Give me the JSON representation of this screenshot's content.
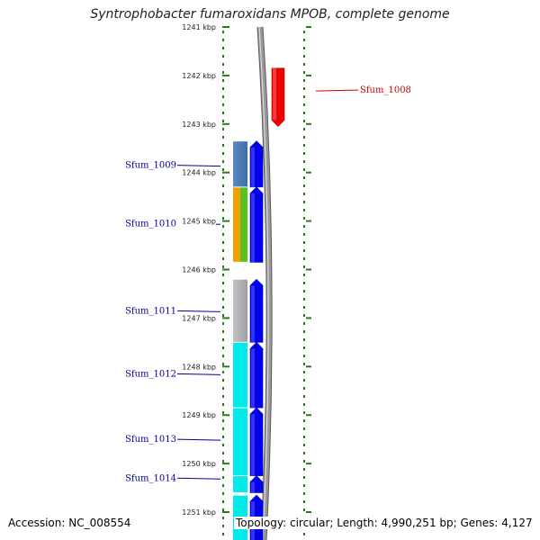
{
  "title": "Syntrophobacter fumaroxidans MPOB, complete genome",
  "footer": {
    "accession": "Accession: NC_008554",
    "topology": "Topology: circular; Length: 4,990,251 bp; Genes: 4,127"
  },
  "colors": {
    "tick": "#2a7a1a",
    "backbone": "#9a9a9a",
    "forward_gene": "#0000ee",
    "reverse_gene": "#ee0000",
    "label_forward": "#000099",
    "label_reverse": "#cc0000"
  },
  "chart_data": {
    "type": "genome-map",
    "axis": {
      "unit": "kbp",
      "range_kbp": [
        1240.9,
        1251.6
      ],
      "ticks": [
        {
          "kbp": 1241,
          "label": "1241 kbp"
        },
        {
          "kbp": 1242,
          "label": "1242 kbp"
        },
        {
          "kbp": 1243,
          "label": "1243 kbp"
        },
        {
          "kbp": 1244,
          "label": "1244 kbp"
        },
        {
          "kbp": 1245,
          "label": "1245 kbp"
        },
        {
          "kbp": 1246,
          "label": "1246 kbp"
        },
        {
          "kbp": 1247,
          "label": "1247 kbp"
        },
        {
          "kbp": 1248,
          "label": "1248 kbp"
        },
        {
          "kbp": 1249,
          "label": "1249 kbp"
        },
        {
          "kbp": 1250,
          "label": "1250 kbp"
        },
        {
          "kbp": 1251,
          "label": "1251 kbp"
        }
      ]
    },
    "genes": [
      {
        "name": "Sfum_1008",
        "strand": "reverse",
        "start_kbp": 1241.85,
        "end_kbp": 1243.05,
        "label_kbp": 1242.3
      },
      {
        "name": "Sfum_1009",
        "strand": "forward",
        "start_kbp": 1243.35,
        "end_kbp": 1244.3,
        "label_kbp": 1243.85
      },
      {
        "name": "Sfum_1010",
        "strand": "forward",
        "start_kbp": 1244.3,
        "end_kbp": 1245.85,
        "label_kbp": 1245.05
      },
      {
        "name": "Sfum_1011",
        "strand": "forward",
        "start_kbp": 1246.2,
        "end_kbp": 1247.5,
        "label_kbp": 1246.85
      },
      {
        "name": "Sfum_1012",
        "strand": "forward",
        "start_kbp": 1247.5,
        "end_kbp": 1248.85,
        "label_kbp": 1248.15
      },
      {
        "name": "Sfum_1013",
        "strand": "forward",
        "start_kbp": 1248.85,
        "end_kbp": 1250.25,
        "label_kbp": 1249.5
      },
      {
        "name": "Sfum_1014",
        "strand": "forward",
        "start_kbp": 1250.25,
        "end_kbp": 1250.6,
        "label_kbp": 1250.3
      },
      {
        "name": "",
        "strand": "forward",
        "start_kbp": 1250.65,
        "end_kbp": 1251.6,
        "label_kbp": null
      }
    ],
    "feature_bands": [
      {
        "gene": "Sfum_1009",
        "segments": [
          {
            "color": "#5a8ac6",
            "to": "#3f6ea8"
          }
        ]
      },
      {
        "gene": "Sfum_1010",
        "segments": [
          {
            "color": "#f2a000"
          },
          {
            "color": "#5cc020"
          }
        ]
      },
      {
        "gene": "Sfum_1011",
        "segments": [
          {
            "color": "#c4c4c8",
            "to": "#9e9ea4"
          }
        ]
      },
      {
        "gene": "Sfum_1012",
        "segments": [
          {
            "color": "#00eaea"
          }
        ]
      },
      {
        "gene": "Sfum_1013",
        "segments": [
          {
            "color": "#00eaea"
          }
        ]
      },
      {
        "gene": "Sfum_1014",
        "segments": [
          {
            "color": "#00eaea"
          }
        ]
      },
      {
        "gene": "",
        "segments": [
          {
            "color": "#00eaea"
          }
        ]
      }
    ]
  }
}
